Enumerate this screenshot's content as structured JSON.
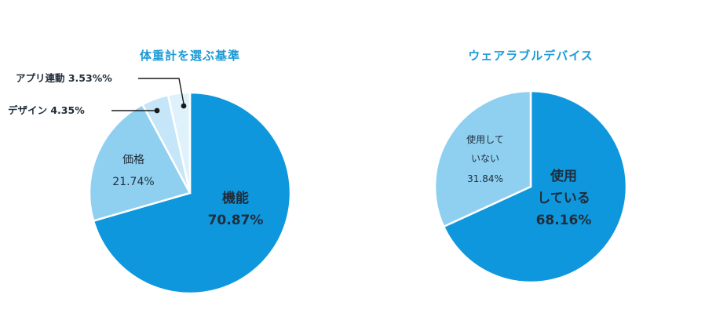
{
  "colors": {
    "title": "#1a9ad6",
    "main_blue": "#0f97dd",
    "light_blue": "#8fd0f1",
    "lighter_blue": "#c4e6f8",
    "lightest_blue": "#dff2fc",
    "label_text": "#1f2d3a",
    "leader": "#1a1a1a"
  },
  "chart_data": [
    {
      "type": "pie",
      "title": "体重計を選ぶ基準",
      "slices": [
        {
          "label": "機能",
          "value": 70.87,
          "value_text": "70.87%",
          "color": "#0f97dd"
        },
        {
          "label": "価格",
          "value": 21.74,
          "value_text": "21.74%",
          "color": "#8fd0f1"
        },
        {
          "label": "デザイン",
          "value": 4.35,
          "value_text": "4.35%",
          "color": "#c4e6f8"
        },
        {
          "label": "アプリ連動",
          "value": 3.53,
          "value_text": "3.53%%",
          "color": "#dff2fc"
        }
      ]
    },
    {
      "type": "pie",
      "title": "ウェアラブルデバイス",
      "slices": [
        {
          "label": "使用 している",
          "label_lines": [
            "使用",
            "している"
          ],
          "value": 68.16,
          "value_text": "68.16%",
          "color": "#0f97dd"
        },
        {
          "label": "使用して いない",
          "label_lines": [
            "使用して",
            "いない"
          ],
          "value": 31.84,
          "value_text": "31.84%",
          "color": "#8fd0f1"
        }
      ]
    }
  ]
}
